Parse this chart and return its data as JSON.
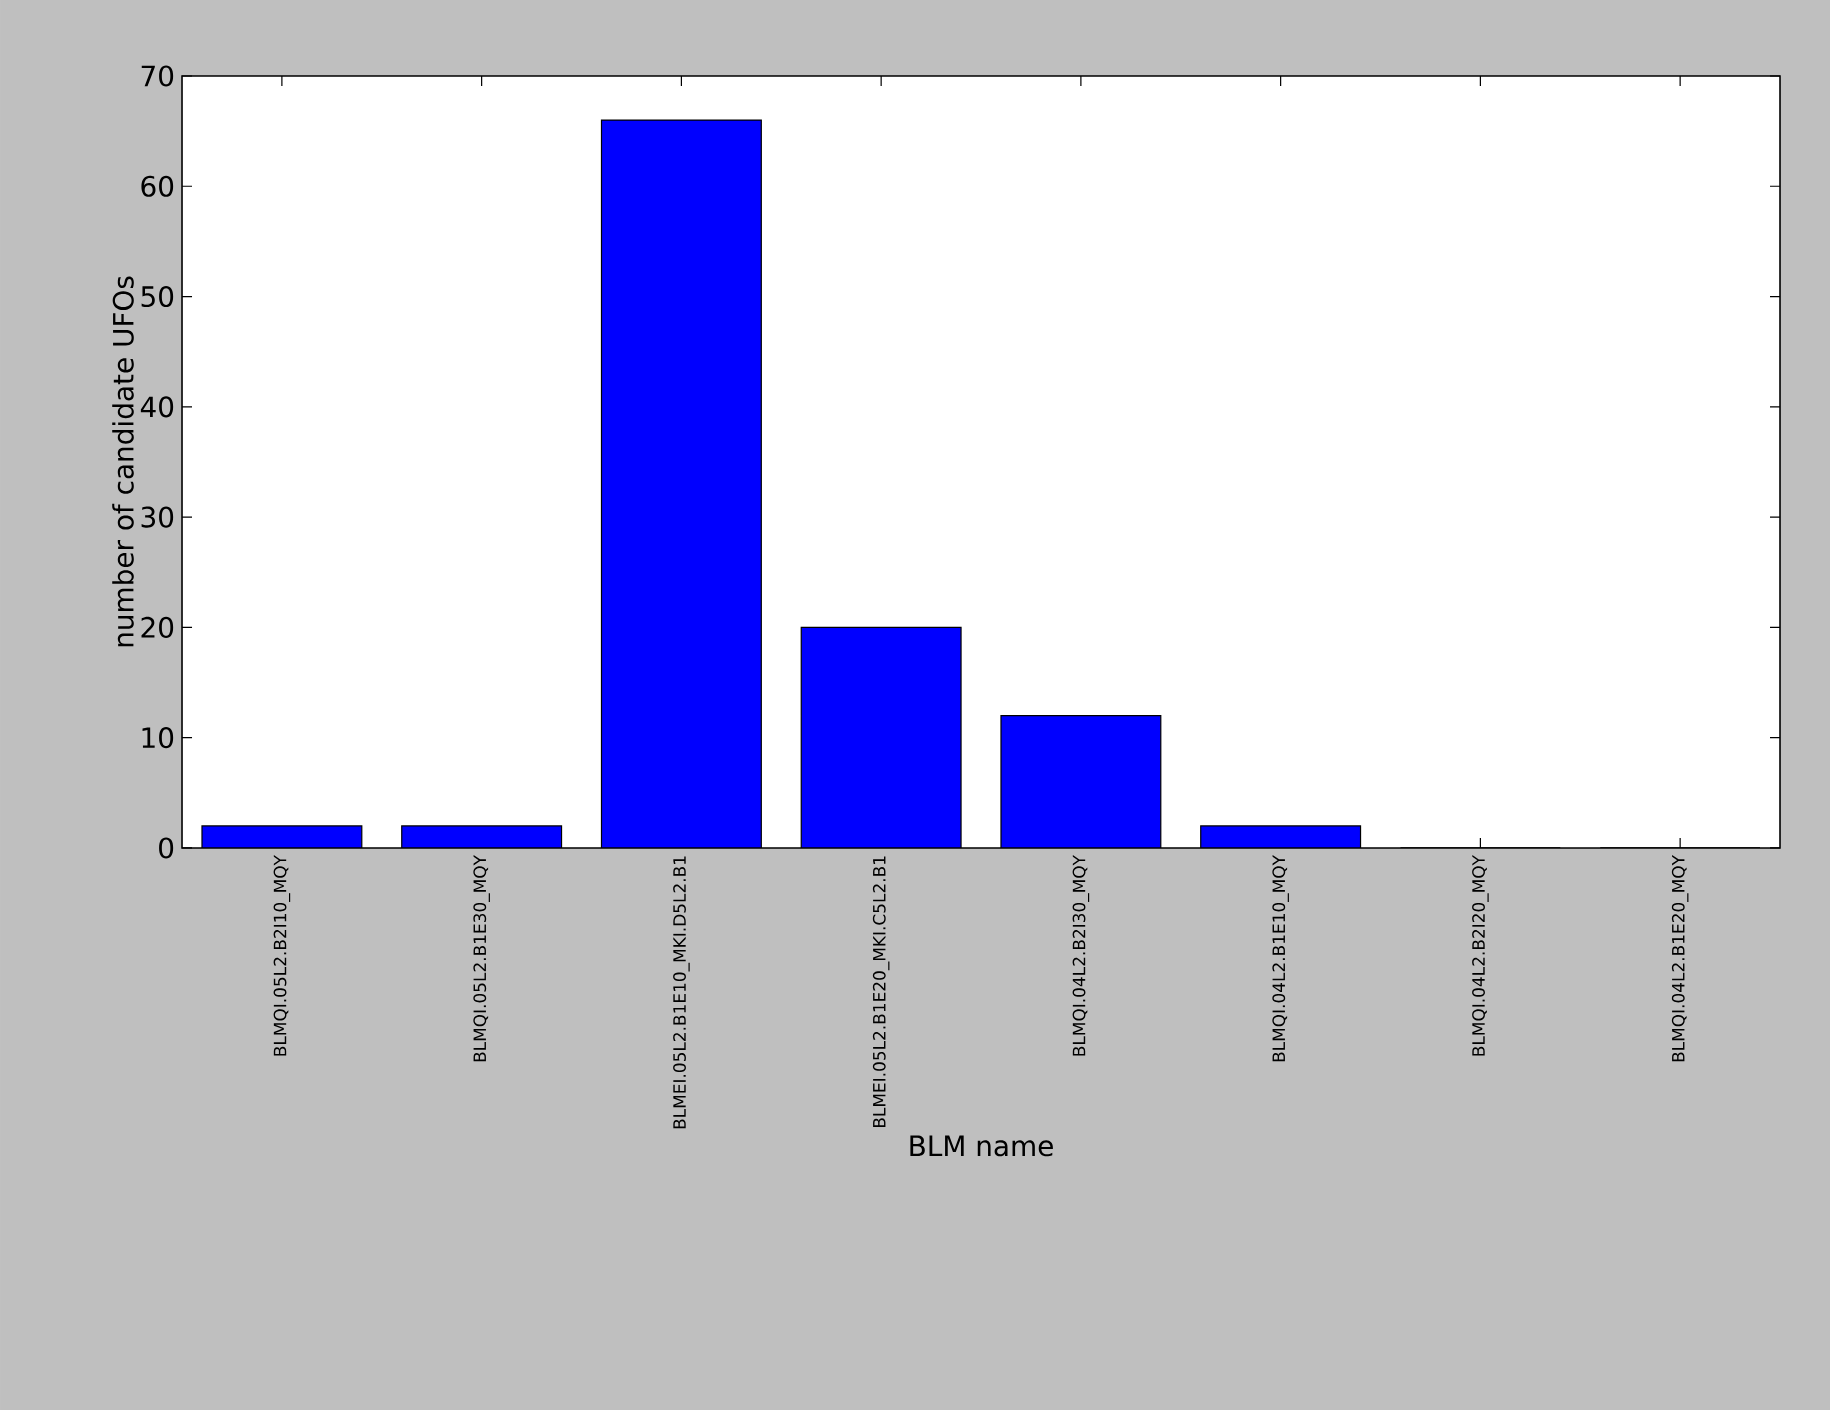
{
  "chart_data": {
    "type": "bar",
    "xlabel": "BLM name",
    "ylabel": "number of candidate UFOs",
    "categories": [
      "BLMQI.05L2.B2I10_MQY",
      "BLMQI.05L2.B1E30_MQY",
      "BLMEI.05L2.B1E10_MKI.D5L2.B1",
      "BLMEI.05L2.B1E20_MKI.C5L2.B1",
      "BLMQI.04L2.B2I30_MQY",
      "BLMQI.04L2.B1E10_MQY",
      "BLMQI.04L2.B2I20_MQY",
      "BLMQI.04L2.B1E20_MQY"
    ],
    "values": [
      2,
      2,
      66,
      20,
      12,
      2,
      0,
      0
    ],
    "color": "#0000ff",
    "ylim": [
      0,
      70
    ],
    "yticks": [
      0,
      10,
      20,
      30,
      40,
      50,
      60,
      70
    ],
    "grid": false
  }
}
